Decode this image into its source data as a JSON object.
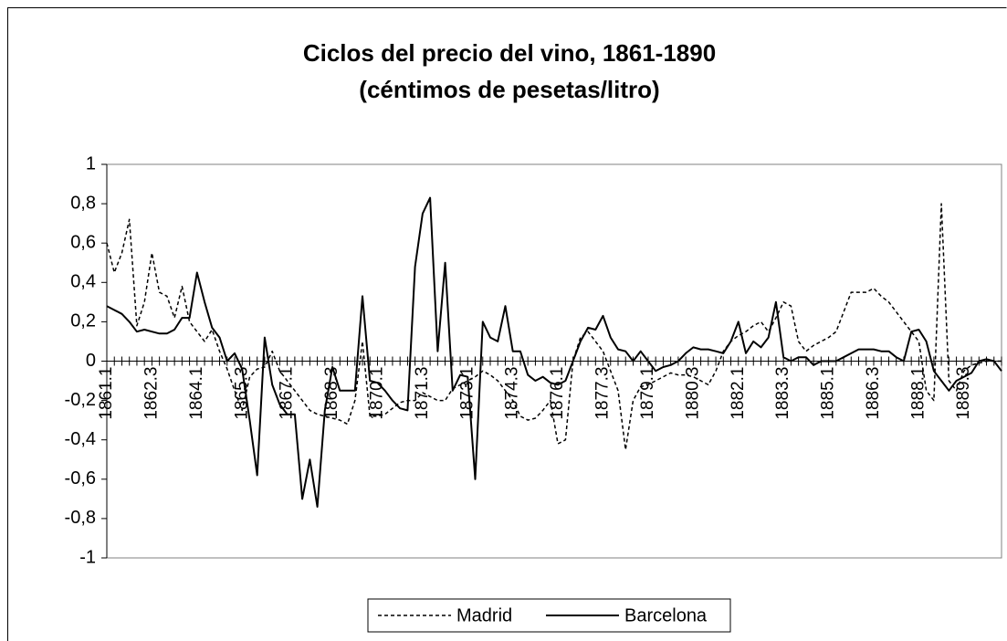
{
  "chart_data": {
    "type": "line",
    "title": "Ciclos del precio del vino, 1861-1890",
    "subtitle": "(céntimos de pesetas/litro)",
    "categories": [
      "1861.1",
      null,
      null,
      null,
      null,
      null,
      "1862.3",
      null,
      null,
      null,
      null,
      null,
      "1864.1",
      null,
      null,
      null,
      null,
      null,
      "1865.3",
      null,
      null,
      null,
      null,
      null,
      "1867.1",
      null,
      null,
      null,
      null,
      null,
      "1868.3",
      null,
      null,
      null,
      null,
      null,
      "1870.1",
      null,
      null,
      null,
      null,
      null,
      "1871.3",
      null,
      null,
      null,
      null,
      null,
      "1873.1",
      null,
      null,
      null,
      null,
      null,
      "1874.3",
      null,
      null,
      null,
      null,
      null,
      "1876.1",
      null,
      null,
      null,
      null,
      null,
      "1877.3",
      null,
      null,
      null,
      null,
      null,
      "1879.1",
      null,
      null,
      null,
      null,
      null,
      "1880.3",
      null,
      null,
      null,
      null,
      null,
      "1882.1",
      null,
      null,
      null,
      null,
      null,
      "1883.3",
      null,
      null,
      null,
      null,
      null,
      "1885.1",
      null,
      null,
      null,
      null,
      null,
      "1886.3",
      null,
      null,
      null,
      null,
      null,
      "1888.1",
      null,
      null,
      null,
      null,
      null,
      "1889.3",
      null,
      null,
      null,
      null,
      null
    ],
    "series": [
      {
        "name": "Madrid",
        "color": "#000000",
        "style": "dashed",
        "values": [
          0.6,
          0.45,
          0.55,
          0.72,
          0.18,
          0.3,
          0.55,
          0.35,
          0.33,
          0.22,
          0.38,
          0.2,
          0.15,
          0.1,
          0.16,
          0.05,
          -0.04,
          -0.15,
          -0.25,
          -0.08,
          -0.04,
          -0.03,
          0.05,
          -0.05,
          -0.1,
          -0.15,
          -0.2,
          -0.25,
          -0.27,
          -0.28,
          -0.29,
          -0.3,
          -0.32,
          -0.2,
          0.1,
          -0.28,
          -0.28,
          -0.27,
          -0.24,
          -0.21,
          -0.2,
          -0.2,
          -0.16,
          -0.18,
          -0.2,
          -0.2,
          -0.14,
          -0.12,
          -0.1,
          -0.08,
          -0.05,
          -0.07,
          -0.1,
          -0.15,
          -0.2,
          -0.28,
          -0.3,
          -0.29,
          -0.25,
          -0.2,
          -0.42,
          -0.4,
          0.0,
          0.12,
          0.15,
          0.1,
          0.05,
          -0.05,
          -0.15,
          -0.45,
          -0.2,
          -0.13,
          -0.12,
          -0.1,
          -0.08,
          -0.06,
          -0.07,
          -0.07,
          -0.08,
          -0.1,
          -0.12,
          -0.05,
          0.05,
          0.1,
          0.13,
          0.15,
          0.18,
          0.2,
          0.15,
          0.22,
          0.3,
          0.28,
          0.1,
          0.05,
          0.08,
          0.1,
          0.12,
          0.15,
          0.25,
          0.35,
          0.35,
          0.35,
          0.37,
          0.33,
          0.3,
          0.25,
          0.2,
          0.15,
          0.1,
          -0.15,
          -0.2,
          0.8,
          -0.1,
          -0.15,
          -0.05,
          -0.02,
          -0.01,
          0.0,
          0.0,
          0.0
        ]
      },
      {
        "name": "Barcelona",
        "color": "#000000",
        "style": "solid",
        "values": [
          0.28,
          0.26,
          0.24,
          0.2,
          0.15,
          0.16,
          0.15,
          0.14,
          0.14,
          0.16,
          0.22,
          0.22,
          0.45,
          0.3,
          0.17,
          0.12,
          0.0,
          0.04,
          -0.04,
          -0.3,
          -0.58,
          0.12,
          -0.12,
          -0.22,
          -0.27,
          -0.27,
          -0.7,
          -0.5,
          -0.74,
          -0.25,
          -0.03,
          -0.15,
          -0.15,
          -0.15,
          0.33,
          -0.1,
          -0.11,
          -0.15,
          -0.2,
          -0.24,
          -0.25,
          0.48,
          0.75,
          0.83,
          0.05,
          0.5,
          -0.15,
          -0.07,
          -0.08,
          -0.6,
          0.2,
          0.12,
          0.1,
          0.28,
          0.05,
          0.05,
          -0.07,
          -0.1,
          -0.08,
          -0.11,
          -0.12,
          -0.1,
          0.0,
          0.1,
          0.17,
          0.16,
          0.23,
          0.12,
          0.06,
          0.05,
          0.0,
          0.05,
          0.0,
          -0.05,
          -0.03,
          -0.02,
          0.0,
          0.04,
          0.07,
          0.06,
          0.06,
          0.05,
          0.04,
          0.1,
          0.2,
          0.04,
          0.1,
          0.07,
          0.12,
          0.3,
          0.02,
          0.0,
          0.02,
          0.02,
          -0.02,
          0.0,
          0.0,
          0.0,
          0.02,
          0.04,
          0.06,
          0.06,
          0.06,
          0.05,
          0.05,
          0.02,
          0.0,
          0.15,
          0.16,
          0.1,
          -0.05,
          -0.1,
          -0.15,
          -0.1,
          -0.08,
          -0.06,
          0.0,
          0.01,
          0.0,
          -0.05
        ]
      }
    ],
    "ylim": [
      -1,
      1
    ],
    "yticks": [
      -1,
      {
        "value": -0.8,
        "label": "-0,8"
      },
      {
        "value": -0.6,
        "label": "-0,6"
      },
      {
        "value": -0.4,
        "label": "-0,4"
      },
      {
        "value": -0.2,
        "label": "-0,2"
      },
      0,
      {
        "value": 0.2,
        "label": "0,2"
      },
      {
        "value": 0.4,
        "label": "0,4"
      },
      {
        "value": 0.6,
        "label": "0,6"
      },
      {
        "value": 0.8,
        "label": "0,8"
      },
      1
    ],
    "grid": false,
    "legend": "bottom"
  }
}
